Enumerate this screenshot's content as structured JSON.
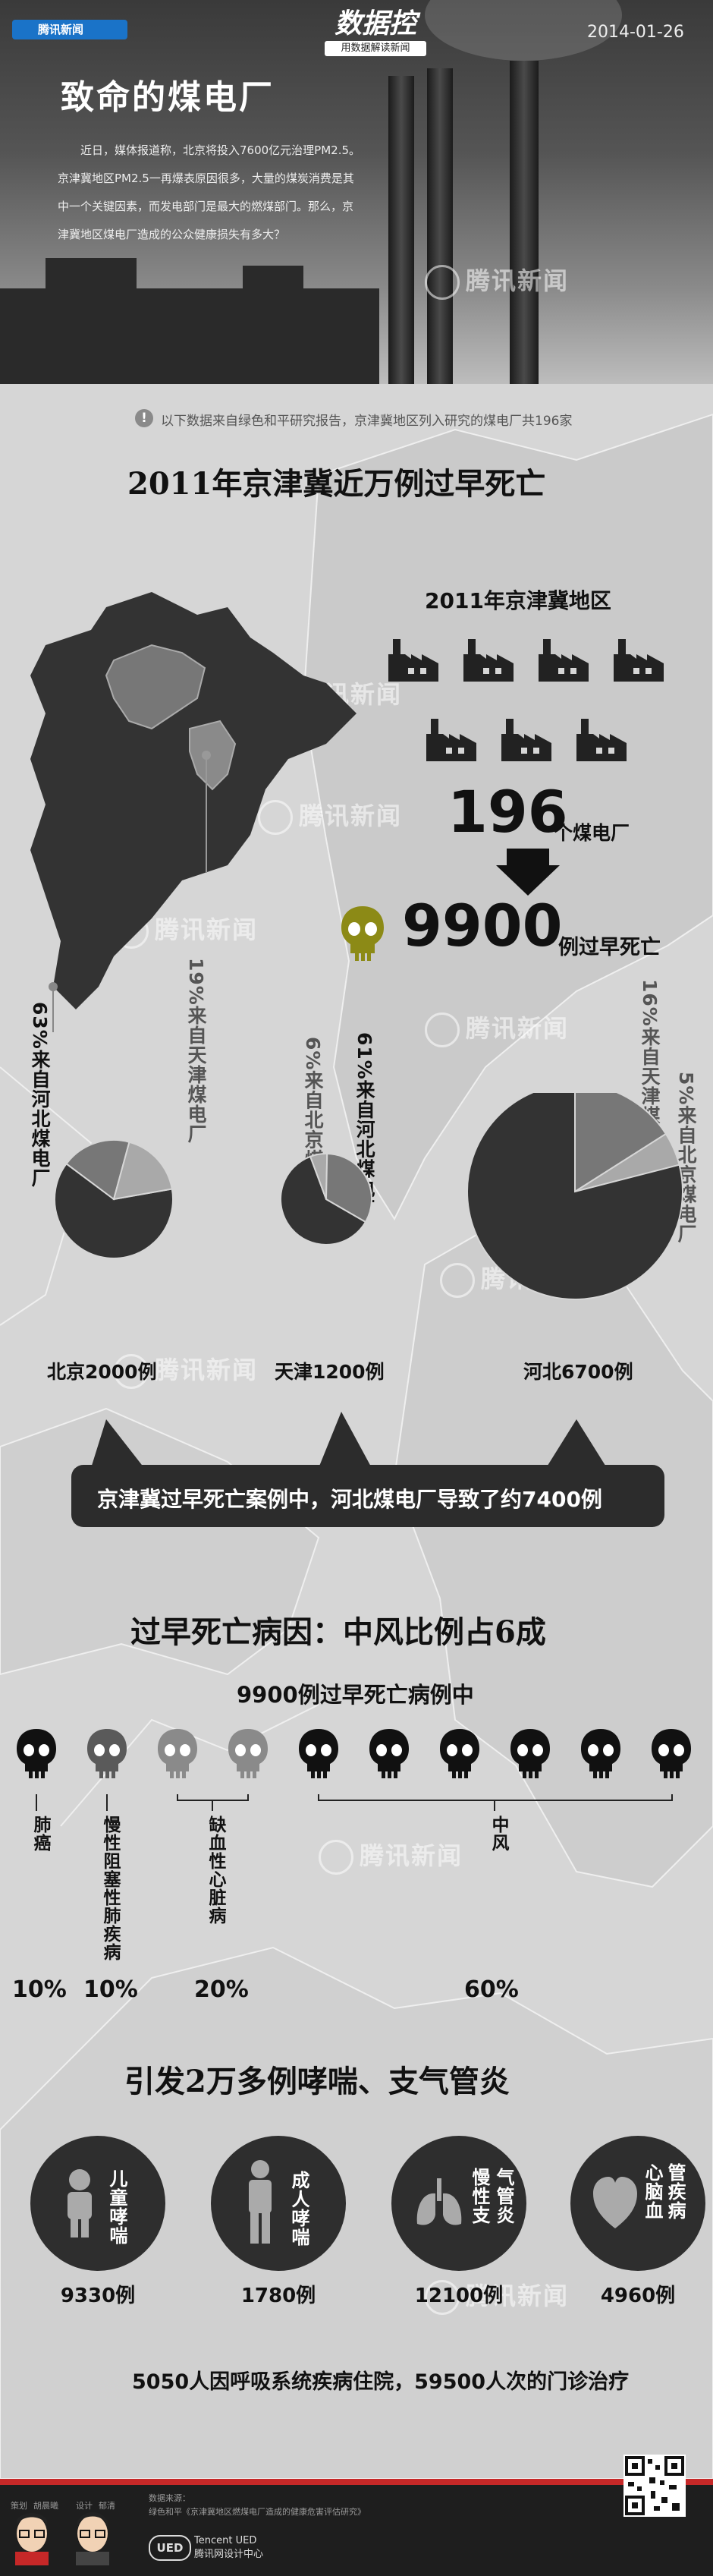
{
  "header": {
    "logo_text": "腾讯新闻",
    "brand_main": "数据控",
    "brand_sub": "用数据解读新闻",
    "date": "2014-01-26",
    "title": "致命的煤电厂",
    "intro": "近日，媒体报道称，北京将投入7600亿元治理PM2.5。京津冀地区PM2.5一再爆表原因很多，大量的煤炭消费是其中一个关键因素，而发电部门是最大的燃煤部门。那么，京津冀地区煤电厂造成的公众健康损失有多大？"
  },
  "note": {
    "icon": "!",
    "text": "以下数据来自绿色和平研究报告，京津冀地区列入研究的煤电厂共196家"
  },
  "watermark": "腾讯新闻",
  "section1": {
    "title": "2011年京津冀近万例过早死亡",
    "region_label": "2011年京津冀地区",
    "plants_number": "196",
    "plants_unit": "个煤电厂",
    "deaths_number": "9900",
    "deaths_unit": "例过早死亡",
    "bubble_text": "京津冀过早死亡案例中，河北煤电厂导致了约7400例"
  },
  "chart_data": [
    {
      "type": "pie",
      "title": "北京2000例",
      "total": 2000,
      "slices": [
        {
          "label": "63%来自河北煤电厂",
          "value": 63
        },
        {
          "label": "19%来自天津煤电厂",
          "value": 19
        },
        {
          "label": "",
          "value": 18
        }
      ]
    },
    {
      "type": "pie",
      "title": "天津1200例",
      "total": 1200,
      "slices": [
        {
          "label": "61%来自河北煤电厂",
          "value": 61
        },
        {
          "label": "6%来自北京煤电厂",
          "value": 6
        },
        {
          "label": "",
          "value": 33
        }
      ]
    },
    {
      "type": "pie",
      "title": "河北6700例",
      "total": 6700,
      "slices": [
        {
          "label": "16%来自天津煤电厂",
          "value": 16
        },
        {
          "label": "5%来自北京煤电厂",
          "value": 5
        },
        {
          "label": "",
          "value": 79
        }
      ]
    },
    {
      "type": "bar",
      "title": "过早死亡病因：中风比例占6成",
      "subtitle": "9900例过早死亡病例中",
      "categories": [
        "肺癌",
        "慢性阻塞性肺疾病",
        "缺血性心脏病",
        "中风"
      ],
      "values": [
        10,
        10,
        20,
        60
      ],
      "value_labels": [
        "10%",
        "10%",
        "20%",
        "60%"
      ]
    },
    {
      "type": "table",
      "title": "引发2万多例哮喘、支气管炎",
      "categories": [
        "儿童哮喘",
        "成人哮喘",
        "慢性支气管炎",
        "心脑血管疾病"
      ],
      "values": [
        9330,
        1780,
        12100,
        4960
      ],
      "value_labels": [
        "9330例",
        "1780例",
        "12100例",
        "4960例"
      ]
    }
  ],
  "section4": {
    "summary": "5050人因呼吸系统疾病住院，59500人次的门诊治疗"
  },
  "disease_labels": {
    "child": "儿童哮喘",
    "adult": "成人哮喘",
    "bronch_a": "慢性支",
    "bronch_b": "气管炎",
    "heart_a": "心脑血",
    "heart_b": "管疾病"
  },
  "footer": {
    "credit_1": "策划",
    "credit_1_name": "胡晨曦",
    "credit_2": "设计",
    "credit_2_name": "郁清",
    "source_label": "数据来源：",
    "source_text": "绿色和平《京津冀地区燃煤电厂造成的健康危害评估研究》",
    "ued_logo": "UED",
    "ued_en": "Tencent UED",
    "ued_cn": "腾讯网设计中心"
  },
  "colors": {
    "dark_slice": "#333333",
    "mid_slice": "#777777",
    "light_slice": "#a9a9a9",
    "accent_skull": "#8c8a16",
    "footer_bar": "#c62828"
  }
}
